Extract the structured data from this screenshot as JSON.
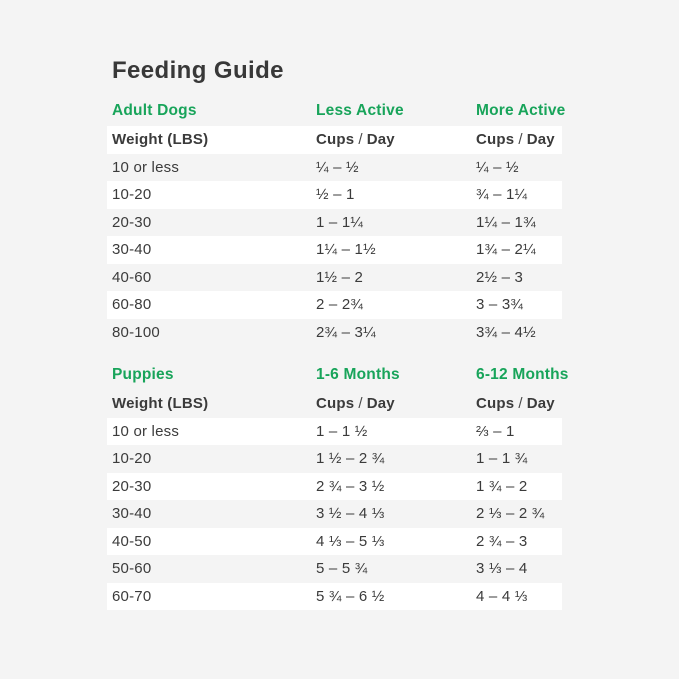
{
  "title": "Feeding Guide",
  "colors": {
    "background": "#f4f4f4",
    "row_white": "#ffffff",
    "accent_green": "#18a45a",
    "text_dark": "#3b3b3b"
  },
  "tables": [
    {
      "name": "Adult Dogs",
      "section_headers": [
        "Adult Dogs",
        "Less Active",
        "More Active"
      ],
      "column_headers": {
        "weight": "Weight (LBS)",
        "cups": "Cups",
        "slash": "/",
        "day": "Day"
      },
      "column_header_white": true,
      "white_rows": "odd",
      "rows": [
        [
          "10 or less",
          "¼ – ½",
          "¼ – ½"
        ],
        [
          "10-20",
          "½ – 1",
          "¾ – 1¼"
        ],
        [
          "20-30",
          "1 – 1¼",
          "1¼ – 1¾"
        ],
        [
          "30-40",
          "1¼ – 1½",
          "1¾ – 2¼"
        ],
        [
          "40-60",
          "1½ – 2",
          "2½ – 3"
        ],
        [
          "60-80",
          "2 – 2¾",
          "3 – 3¾"
        ],
        [
          "80-100",
          "2¾ – 3¼",
          "3¾ – 4½"
        ]
      ]
    },
    {
      "name": "Puppies",
      "section_headers": [
        "Puppies",
        "1-6 Months",
        "6-12 Months"
      ],
      "column_headers": {
        "weight": "Weight (LBS)",
        "cups": "Cups",
        "slash": "/",
        "day": "Day"
      },
      "column_header_white": false,
      "white_rows": "even",
      "rows": [
        [
          "10 or less",
          "1 – 1 ½",
          "⅔ – 1"
        ],
        [
          "10-20",
          "1 ½ – 2 ¾",
          "1 – 1 ¾"
        ],
        [
          "20-30",
          "2 ¾ – 3 ½",
          "1 ¾ – 2"
        ],
        [
          "30-40",
          "3 ½ – 4 ⅓",
          "2 ⅓ – 2 ¾"
        ],
        [
          "40-50",
          "4 ⅓ – 5 ⅓",
          "2 ¾ – 3"
        ],
        [
          "50-60",
          "5 – 5 ¾",
          "3 ⅓ – 4"
        ],
        [
          "60-70",
          "5 ¾ – 6 ½",
          "4 – 4 ⅓"
        ]
      ]
    }
  ]
}
